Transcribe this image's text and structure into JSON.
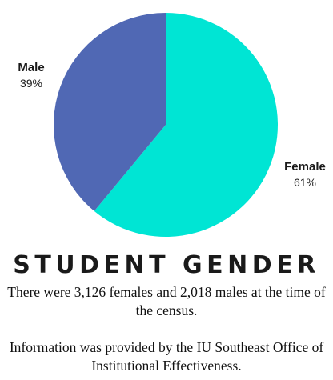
{
  "chart_data": {
    "type": "pie",
    "title": "STUDENT GENDER",
    "slices": [
      {
        "name": "Female",
        "value": 61,
        "label": "61%",
        "color": "#00e5d4"
      },
      {
        "name": "Male",
        "value": 39,
        "label": "39%",
        "color": "#5068b4"
      }
    ]
  },
  "captions": {
    "para1": "There were 3,126 females and 2,018 males at the time of the census.",
    "para2": "Information was provided by the IU Southeast Office of Institutional Effectiveness."
  }
}
